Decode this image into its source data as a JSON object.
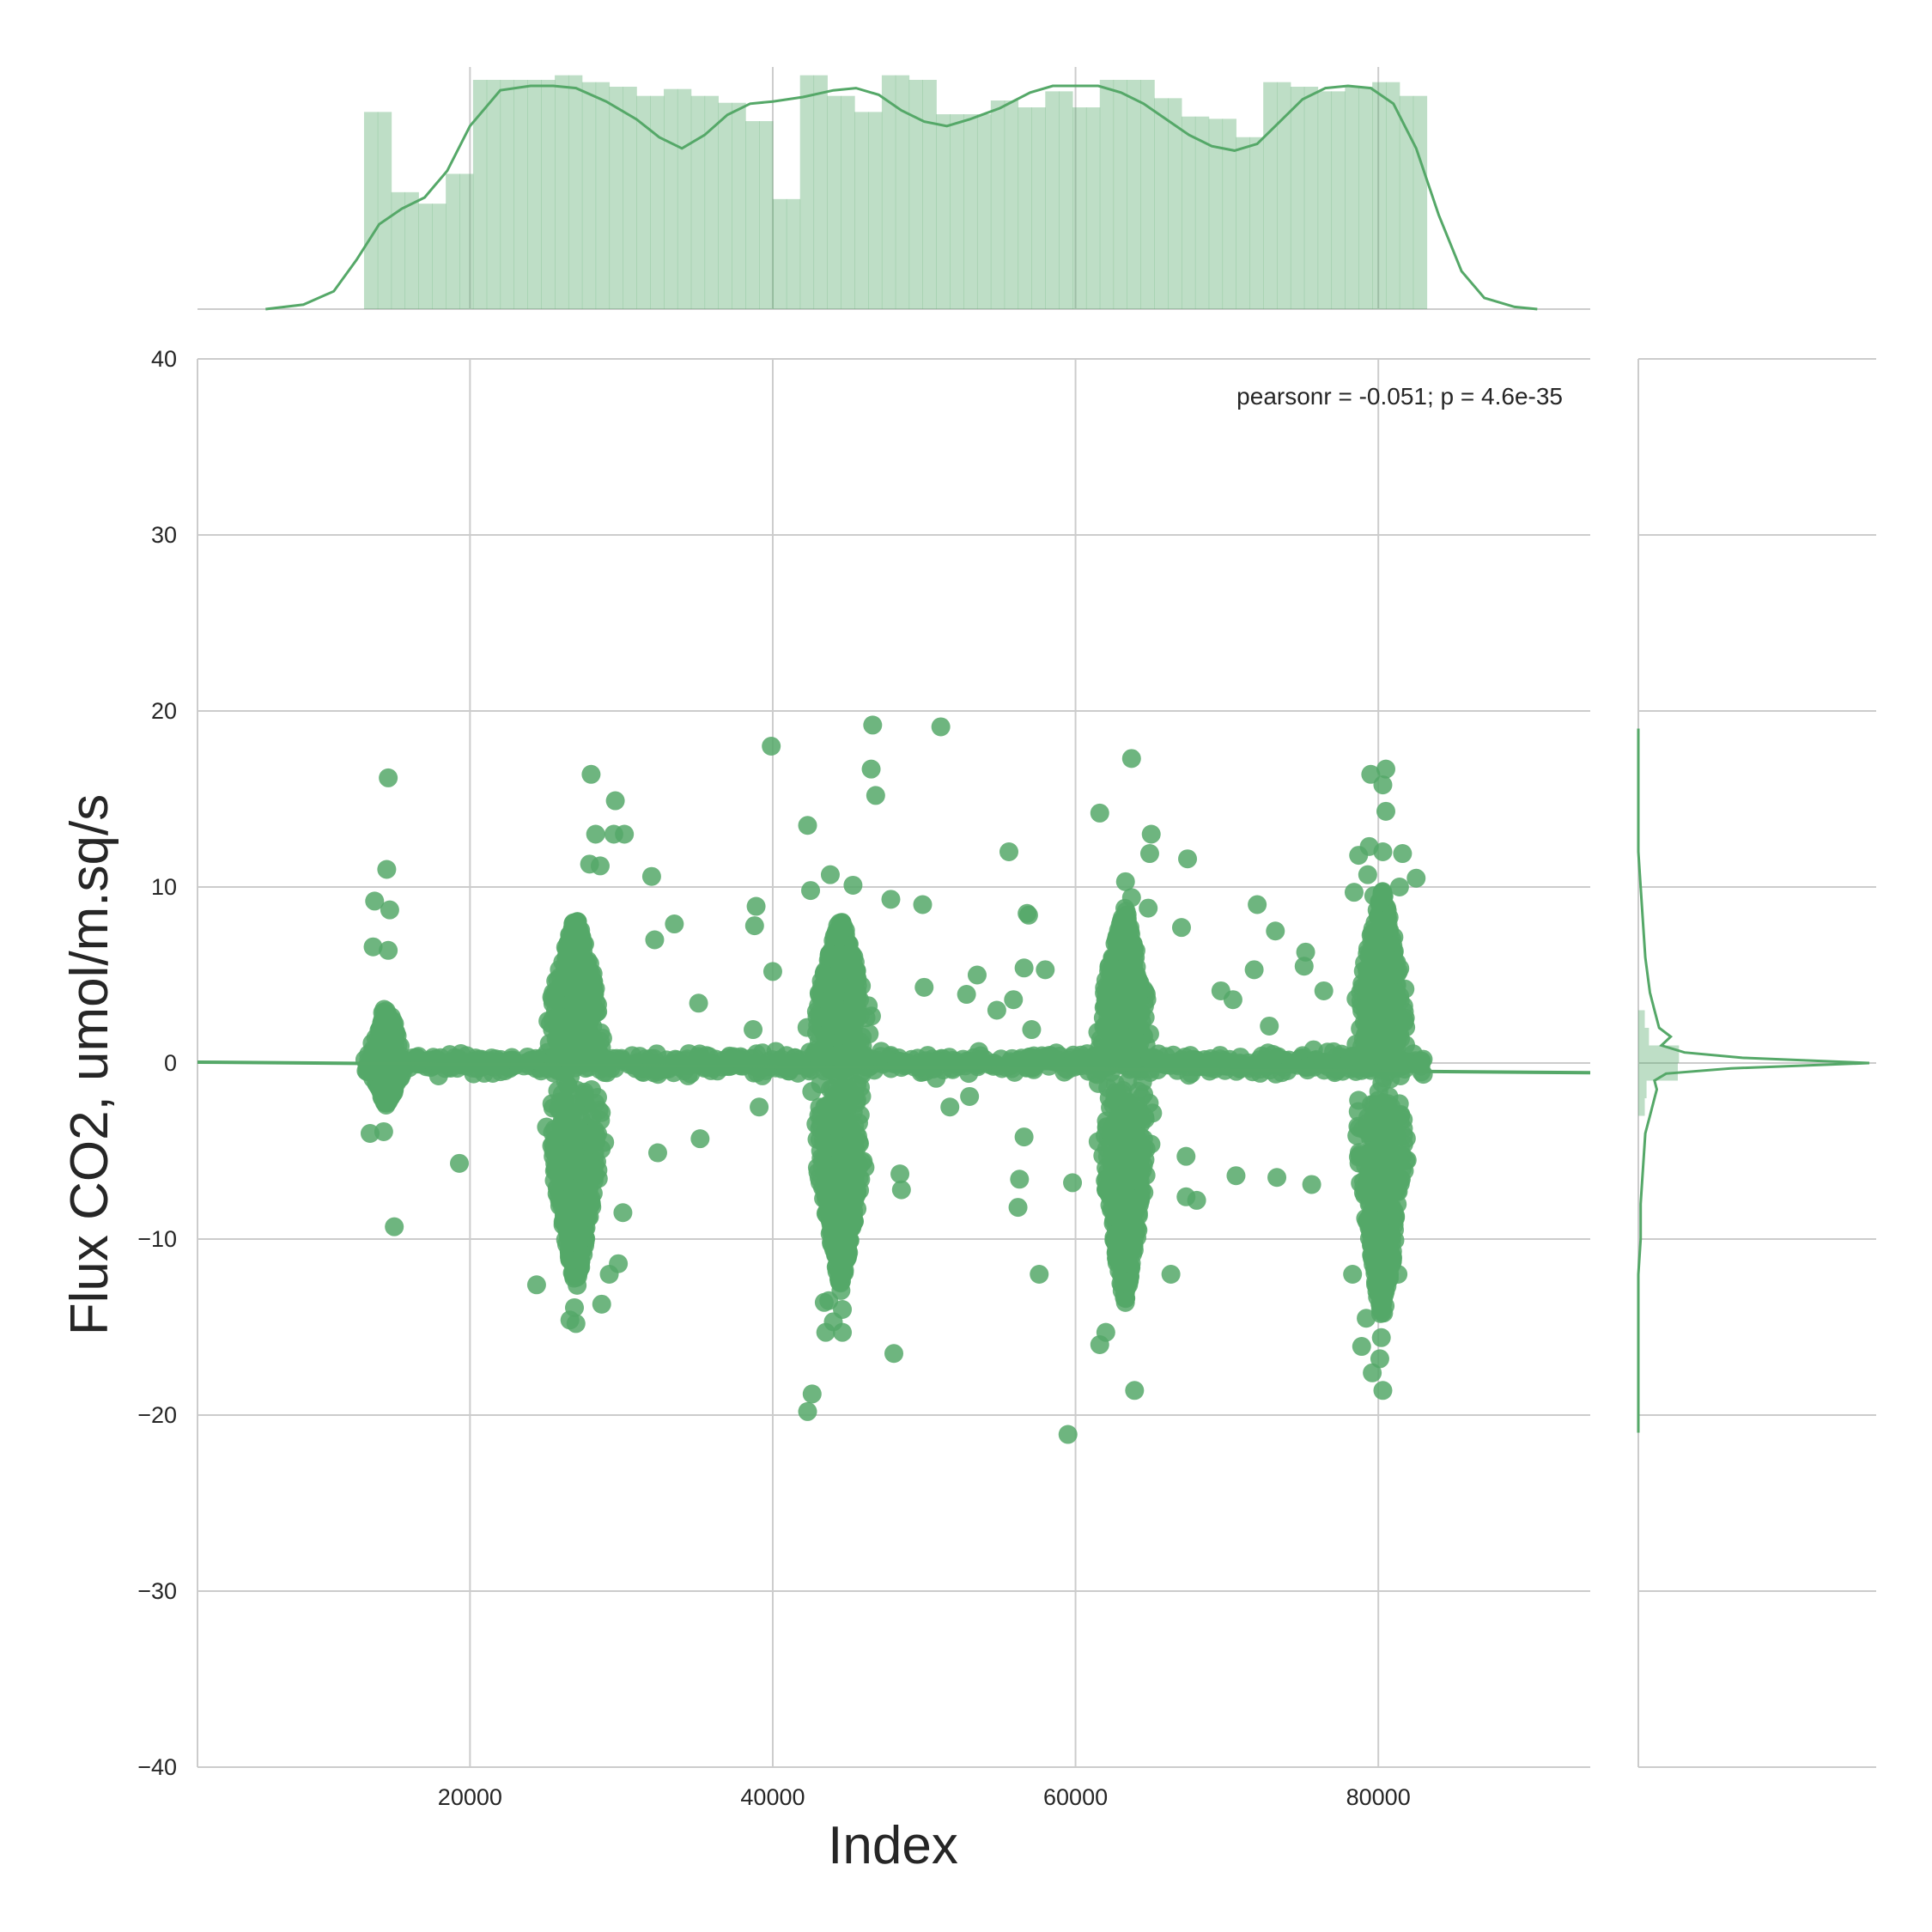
{
  "colors": {
    "accent": "#55a868",
    "grid": "#cccccc",
    "text": "#262626",
    "background": "#ffffff"
  },
  "chart_data": {
    "type": "scatter",
    "subtype": "jointplot-with-regression",
    "xlabel": "Index",
    "ylabel": "Flux CO2, umol/m.sq/s",
    "annotation": "pearsonr = -0.051; p = 4.6e-35",
    "xlim": [
      2000,
      94000
    ],
    "ylim": [
      -40,
      40
    ],
    "x_ticks": [
      20000,
      40000,
      60000,
      80000
    ],
    "y_ticks": [
      -40,
      -30,
      -20,
      -10,
      0,
      10,
      20,
      30,
      40
    ],
    "x_tick_labels": [
      "20000",
      "40000",
      "60000",
      "80000"
    ],
    "y_tick_labels": [
      "−40",
      "−30",
      "−20",
      "−10",
      "0",
      "10",
      "20",
      "30",
      "40"
    ],
    "grid": true,
    "regression_line": {
      "x": [
        2000,
        94000
      ],
      "y": [
        0.05,
        -0.55
      ]
    },
    "clusters": [
      {
        "x_range": [
          13000,
          16000
        ],
        "y_range": [
          -2.5,
          3.5
        ],
        "density": "medium"
      },
      {
        "x_range": [
          24000,
          30000
        ],
        "y_range": [
          -13,
          8.5
        ],
        "density": "high"
      },
      {
        "x_range": [
          41500,
          47500
        ],
        "y_range": [
          -13,
          8.5
        ],
        "density": "high"
      },
      {
        "x_range": [
          60500,
          66000
        ],
        "y_range": [
          -14,
          9
        ],
        "density": "high"
      },
      {
        "x_range": [
          77500,
          83000
        ],
        "y_range": [
          -15,
          10
        ],
        "density": "high"
      }
    ],
    "points": [
      [
        14600,
        16.2
      ],
      [
        14500,
        11.0
      ],
      [
        13700,
        9.2
      ],
      [
        14700,
        8.7
      ],
      [
        13600,
        6.6
      ],
      [
        14600,
        6.4
      ],
      [
        15000,
        -9.3
      ],
      [
        14300,
        -3.9
      ],
      [
        13400,
        -4.0
      ],
      [
        19300,
        -5.7
      ],
      [
        24400,
        -12.6
      ],
      [
        26600,
        -14.6
      ],
      [
        27000,
        -14.8
      ],
      [
        26900,
        -13.9
      ],
      [
        28700,
        -13.7
      ],
      [
        29800,
        -11.4
      ],
      [
        29200,
        -12.0
      ],
      [
        28000,
        16.4
      ],
      [
        29600,
        14.9
      ],
      [
        28300,
        13.0
      ],
      [
        29500,
        13.0
      ],
      [
        30200,
        13.0
      ],
      [
        27900,
        11.3
      ],
      [
        28600,
        11.2
      ],
      [
        32000,
        10.6
      ],
      [
        33500,
        7.9
      ],
      [
        32200,
        7.0
      ],
      [
        32400,
        -5.1
      ],
      [
        30100,
        -8.5
      ],
      [
        35200,
        -4.3
      ],
      [
        35100,
        3.4
      ],
      [
        39900,
        18.0
      ],
      [
        38900,
        8.9
      ],
      [
        38800,
        7.8
      ],
      [
        40000,
        5.2
      ],
      [
        38700,
        1.9
      ],
      [
        39100,
        -2.5
      ],
      [
        46600,
        19.2
      ],
      [
        46500,
        16.7
      ],
      [
        46800,
        15.2
      ],
      [
        42300,
        13.5
      ],
      [
        42500,
        9.8
      ],
      [
        43800,
        10.7
      ],
      [
        45300,
        10.1
      ],
      [
        47800,
        9.3
      ],
      [
        49900,
        9.0
      ],
      [
        42300,
        -19.8
      ],
      [
        42600,
        -18.8
      ],
      [
        48000,
        -16.5
      ],
      [
        43500,
        -15.3
      ],
      [
        44600,
        -15.3
      ],
      [
        44000,
        -14.7
      ],
      [
        43400,
        -13.6
      ],
      [
        43700,
        -13.5
      ],
      [
        44600,
        -14.0
      ],
      [
        48500,
        -7.2
      ],
      [
        48400,
        -6.3
      ],
      [
        51100,
        19.1
      ],
      [
        55600,
        12.0
      ],
      [
        50000,
        4.3
      ],
      [
        52800,
        3.9
      ],
      [
        53500,
        5.0
      ],
      [
        54800,
        3.0
      ],
      [
        55900,
        3.6
      ],
      [
        51700,
        -2.5
      ],
      [
        53000,
        -1.9
      ],
      [
        56800,
        8.5
      ],
      [
        56900,
        8.4
      ],
      [
        58000,
        5.3
      ],
      [
        56600,
        5.4
      ],
      [
        57100,
        1.9
      ],
      [
        56600,
        -4.2
      ],
      [
        56300,
        -6.6
      ],
      [
        56200,
        -8.2
      ],
      [
        57600,
        -12.0
      ],
      [
        59500,
        -21.1
      ],
      [
        59800,
        -6.8
      ],
      [
        63700,
        17.3
      ],
      [
        61600,
        14.2
      ],
      [
        65000,
        13.0
      ],
      [
        64900,
        11.9
      ],
      [
        63300,
        10.3
      ],
      [
        63700,
        9.4
      ],
      [
        64800,
        8.8
      ],
      [
        67400,
        11.6
      ],
      [
        67000,
        7.7
      ],
      [
        61600,
        -16.0
      ],
      [
        62000,
        -15.3
      ],
      [
        63900,
        -18.6
      ],
      [
        67300,
        -7.6
      ],
      [
        67300,
        -5.3
      ],
      [
        68000,
        -7.8
      ],
      [
        66300,
        -12.0
      ],
      [
        70600,
        -6.4
      ],
      [
        73300,
        -6.5
      ],
      [
        75600,
        -6.9
      ],
      [
        69600,
        4.1
      ],
      [
        70400,
        3.6
      ],
      [
        72000,
        9.0
      ],
      [
        73200,
        7.5
      ],
      [
        72800,
        2.1
      ],
      [
        75200,
        6.3
      ],
      [
        75100,
        5.5
      ],
      [
        71800,
        5.3
      ],
      [
        76400,
        4.1
      ],
      [
        79500,
        16.4
      ],
      [
        80500,
        16.7
      ],
      [
        80300,
        15.8
      ],
      [
        80500,
        14.3
      ],
      [
        79400,
        12.3
      ],
      [
        80300,
        12.0
      ],
      [
        81600,
        11.9
      ],
      [
        78700,
        11.8
      ],
      [
        79300,
        10.7
      ],
      [
        81400,
        10.0
      ],
      [
        82500,
        10.5
      ],
      [
        78400,
        9.7
      ],
      [
        79700,
        9.5
      ],
      [
        80300,
        -18.6
      ],
      [
        79600,
        -17.6
      ],
      [
        80100,
        -16.8
      ],
      [
        78900,
        -16.1
      ],
      [
        80200,
        -15.6
      ],
      [
        79200,
        -14.5
      ],
      [
        81300,
        -12.0
      ],
      [
        78300,
        -12.0
      ]
    ],
    "top_marginal": {
      "type": "histogram+kde",
      "bin_edges": [
        13000,
        13900,
        14800,
        15700,
        16600,
        17500,
        18400,
        19300,
        20200,
        21100,
        22000,
        22900,
        23800,
        24700,
        25600,
        26500,
        27400,
        28300,
        29200,
        30100,
        31000,
        31900,
        32800,
        33700,
        34600,
        35500,
        36400,
        37300,
        38200,
        39100,
        40000,
        40900,
        41800,
        42700,
        43600,
        44500,
        45400,
        46300,
        47200,
        48100,
        49000,
        49900,
        50800,
        51700,
        52600,
        53500,
        54400,
        55300,
        56200,
        57100,
        58000,
        58900,
        59800,
        60700,
        61600,
        62500,
        63400,
        64300,
        65200,
        66100,
        67000,
        67900,
        68800,
        69700,
        70600,
        71500,
        72400,
        73300,
        74200,
        75100,
        76000,
        76900,
        77800,
        78700,
        79600,
        80500,
        81400,
        82300,
        83200
      ],
      "counts": [
        0.86,
        0.86,
        0.51,
        0.51,
        0.46,
        0.46,
        0.59,
        0.59,
        1.0,
        1.0,
        1.0,
        1.0,
        1.0,
        1.0,
        1.02,
        1.02,
        0.99,
        0.99,
        0.97,
        0.97,
        0.93,
        0.93,
        0.96,
        0.96,
        0.93,
        0.93,
        0.9,
        0.9,
        0.82,
        0.82,
        0.48,
        0.48,
        1.02,
        1.02,
        0.93,
        0.93,
        0.86,
        0.86,
        1.02,
        1.02,
        1.0,
        1.0,
        0.85,
        0.85,
        0.85,
        0.85,
        0.91,
        0.91,
        0.88,
        0.88,
        0.95,
        0.95,
        0.88,
        0.88,
        1.0,
        1.0,
        1.0,
        1.0,
        0.92,
        0.92,
        0.84,
        0.84,
        0.83,
        0.83,
        0.75,
        0.75,
        0.99,
        0.99,
        0.97,
        0.97,
        0.95,
        0.95,
        0.97,
        0.97,
        0.99,
        0.99,
        0.93,
        0.93
      ],
      "kde_x": [
        6500,
        9000,
        11000,
        12500,
        14000,
        15500,
        17000,
        18500,
        20000,
        22000,
        24000,
        25500,
        27000,
        29000,
        31000,
        32500,
        34000,
        35500,
        37000,
        38500,
        40000,
        42000,
        44000,
        45500,
        47000,
        48500,
        50000,
        51500,
        53000,
        55000,
        57000,
        58500,
        60000,
        61500,
        63000,
        64500,
        66000,
        67500,
        69000,
        70500,
        72000,
        73500,
        75000,
        76500,
        78000,
        79500,
        81000,
        82500,
        84000,
        85500,
        87000,
        89000,
        90500
      ],
      "kde_y": [
        0.0,
        0.02,
        0.08,
        0.22,
        0.38,
        0.45,
        0.5,
        0.62,
        0.82,
        0.98,
        1.0,
        1.0,
        0.99,
        0.93,
        0.85,
        0.77,
        0.72,
        0.78,
        0.87,
        0.92,
        0.93,
        0.95,
        0.98,
        0.99,
        0.96,
        0.89,
        0.84,
        0.82,
        0.85,
        0.9,
        0.97,
        1.0,
        1.0,
        1.0,
        0.97,
        0.92,
        0.85,
        0.78,
        0.73,
        0.71,
        0.74,
        0.84,
        0.94,
        0.99,
        1.0,
        0.99,
        0.92,
        0.72,
        0.42,
        0.17,
        0.05,
        0.01,
        0.0
      ]
    },
    "right_marginal": {
      "type": "histogram+kde",
      "kde_y": [
        -21,
        -12,
        -10,
        -8,
        -6,
        -4,
        -3,
        -2,
        -1.5,
        -1,
        -0.6,
        -0.3,
        0,
        0.3,
        0.6,
        1,
        1.5,
        2,
        3,
        4,
        6,
        8,
        10,
        12,
        19
      ],
      "kde_x": [
        0.0,
        0.0,
        0.01,
        0.01,
        0.02,
        0.03,
        0.05,
        0.07,
        0.08,
        0.07,
        0.12,
        0.4,
        1.0,
        0.45,
        0.2,
        0.1,
        0.14,
        0.09,
        0.07,
        0.05,
        0.03,
        0.02,
        0.01,
        0.0,
        0.0
      ],
      "hist_bins": [
        [
          -1,
          0,
          0.6
        ],
        [
          0,
          1,
          0.62
        ],
        [
          1,
          2,
          0.12
        ],
        [
          2,
          3,
          0.05
        ],
        [
          -2,
          -1,
          0.08
        ],
        [
          -3,
          -2,
          0.05
        ]
      ]
    }
  }
}
